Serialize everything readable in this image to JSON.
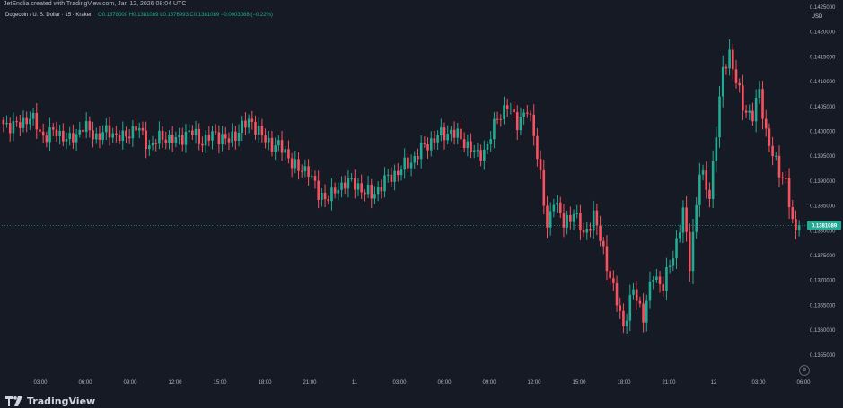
{
  "header": {
    "attribution": "JetEnclia created with TradingView.com, Jan 12, 2026 08:04 UTC",
    "symbol": "Dogecoin / U. S. Dollar · 15 · Kraken",
    "ohlc": "O0.1378000 H0.1381089 L0.1376993 C0.1381089 −0.0003088 (−0.22%)",
    "currency": "USD"
  },
  "footer": {
    "brand": "TradingView"
  },
  "icons": {
    "logo": "tradingview-logo-icon",
    "settings": "chart-settings-icon"
  },
  "colors": {
    "background": "#161a25",
    "up": "#22ab94",
    "down": "#f7525f",
    "text": "#d1d4dc",
    "last_price_badge": "#22ab94"
  },
  "chart_data": {
    "type": "candlestick",
    "title": "Dogecoin / U. S. Dollar · 15 · Kraken",
    "interval": "15",
    "x": {
      "ticks": [
        "03:00",
        "06:00",
        "09:00",
        "12:00",
        "15:00",
        "18:00",
        "21:00",
        "11",
        "03:00",
        "06:00",
        "09:00",
        "12:00",
        "15:00",
        "18:00",
        "21:00",
        "12",
        "03:00",
        "06:00"
      ]
    },
    "y": {
      "unit": "USD",
      "ylim": [
        0.1351,
        0.1425
      ],
      "ticks": [
        0.1425,
        0.142,
        0.1415,
        0.141,
        0.1405,
        0.14,
        0.1395,
        0.139,
        0.1385,
        0.138,
        0.1375,
        0.137,
        0.1365,
        0.136,
        0.1355
      ],
      "tick_labels": [
        "0.1425000",
        "0.1420000",
        "0.1415000",
        "0.1410000",
        "0.1405000",
        "0.1400000",
        "0.1395000",
        "0.1390000",
        "0.1385000",
        "0.1380000",
        "0.1375000",
        "0.1370000",
        "0.1365000",
        "0.1360000",
        "0.1355000"
      ]
    },
    "last_price": 0.1381089,
    "last_price_label": "0.1381089",
    "grid": false,
    "anchors": [
      [
        0,
        0.14015
      ],
      [
        4,
        0.1401
      ],
      [
        8,
        0.1403
      ],
      [
        12,
        0.1399
      ],
      [
        16,
        0.14
      ],
      [
        20,
        0.1398
      ],
      [
        24,
        0.1401
      ],
      [
        28,
        0.1399
      ],
      [
        32,
        0.14
      ],
      [
        36,
        0.13985
      ],
      [
        40,
        0.1401
      ],
      [
        44,
        0.1397
      ],
      [
        48,
        0.1399
      ],
      [
        52,
        0.1398
      ],
      [
        56,
        0.14
      ],
      [
        60,
        0.1398
      ],
      [
        64,
        0.13995
      ],
      [
        68,
        0.1398
      ],
      [
        72,
        0.1401
      ],
      [
        75,
        0.1402
      ],
      [
        79,
        0.1398
      ],
      [
        83,
        0.1397
      ],
      [
        86,
        0.1395
      ],
      [
        89,
        0.1392
      ],
      [
        92,
        0.13925
      ],
      [
        95,
        0.1387
      ],
      [
        99,
        0.1387
      ],
      [
        103,
        0.139
      ],
      [
        107,
        0.1389
      ],
      [
        111,
        0.1387
      ],
      [
        115,
        0.139
      ],
      [
        119,
        0.1392
      ],
      [
        123,
        0.1394
      ],
      [
        127,
        0.1397
      ],
      [
        131,
        0.1399
      ],
      [
        135,
        0.14
      ],
      [
        139,
        0.1398
      ],
      [
        143,
        0.1395
      ],
      [
        146,
        0.1397
      ],
      [
        149,
        0.1403
      ],
      [
        152,
        0.1405
      ],
      [
        155,
        0.1402
      ],
      [
        158,
        0.1404
      ],
      [
        160,
        0.14
      ],
      [
        162,
        0.1391
      ],
      [
        164,
        0.138
      ],
      [
        166,
        0.1387
      ],
      [
        169,
        0.1381
      ],
      [
        172,
        0.1384
      ],
      [
        175,
        0.1379
      ],
      [
        178,
        0.1383
      ],
      [
        181,
        0.1376
      ],
      [
        184,
        0.1368
      ],
      [
        187,
        0.1361
      ],
      [
        190,
        0.1368
      ],
      [
        193,
        0.1363
      ],
      [
        196,
        0.1371
      ],
      [
        199,
        0.1369
      ],
      [
        202,
        0.1375
      ],
      [
        205,
        0.1384
      ],
      [
        207,
        0.1373
      ],
      [
        210,
        0.1392
      ],
      [
        213,
        0.1387
      ],
      [
        215,
        0.14
      ],
      [
        217,
        0.1412
      ],
      [
        219,
        0.1416
      ],
      [
        221,
        0.141
      ],
      [
        223,
        0.1405
      ],
      [
        226,
        0.1403
      ],
      [
        228,
        0.1408
      ],
      [
        230,
        0.14
      ],
      [
        232,
        0.1395
      ],
      [
        234,
        0.1392
      ],
      [
        236,
        0.139
      ],
      [
        238,
        0.1381
      ],
      [
        240,
        0.1379
      ]
    ]
  }
}
